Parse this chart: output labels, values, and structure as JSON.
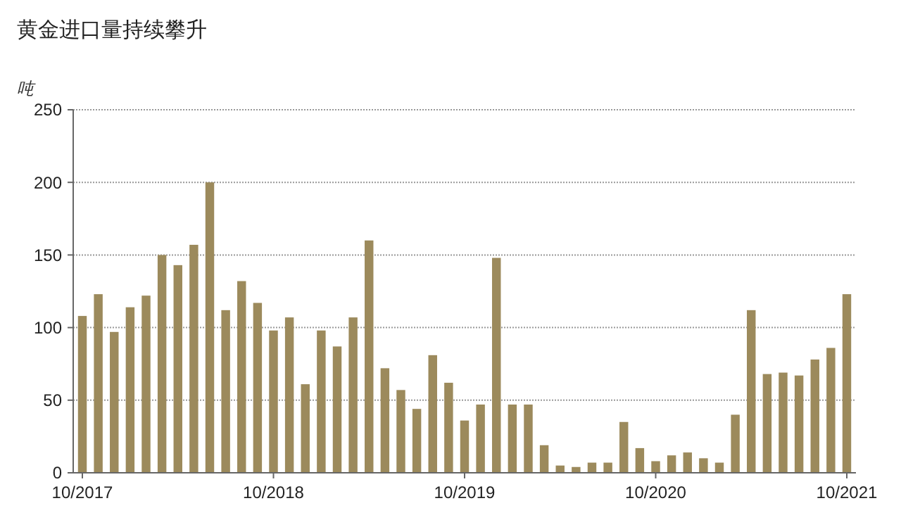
{
  "chart_data": {
    "type": "bar",
    "title": "黄金进口量持续攀升",
    "ylabel": "吨",
    "categories": [
      "10/2017",
      null,
      null,
      null,
      null,
      null,
      null,
      null,
      null,
      null,
      null,
      null,
      "10/2018",
      null,
      null,
      null,
      null,
      null,
      null,
      null,
      null,
      null,
      null,
      null,
      "10/2019",
      null,
      null,
      null,
      null,
      null,
      null,
      null,
      null,
      null,
      null,
      null,
      "10/2020",
      null,
      null,
      null,
      null,
      null,
      null,
      null,
      null,
      null,
      null,
      null,
      "10/2021"
    ],
    "values": [
      108,
      123,
      97,
      114,
      122,
      150,
      143,
      157,
      200,
      112,
      132,
      117,
      98,
      107,
      61,
      98,
      87,
      107,
      160,
      72,
      57,
      44,
      81,
      62,
      36,
      47,
      148,
      47,
      47,
      19,
      5,
      4,
      7,
      7,
      35,
      17,
      8,
      12,
      14,
      10,
      7,
      40,
      112,
      68,
      69,
      67,
      78,
      86,
      123
    ],
    "color": "#9c8a5c",
    "ylim": [
      0,
      250
    ],
    "yticks": [
      0,
      50,
      100,
      150,
      200,
      250
    ],
    "grid": "y"
  }
}
